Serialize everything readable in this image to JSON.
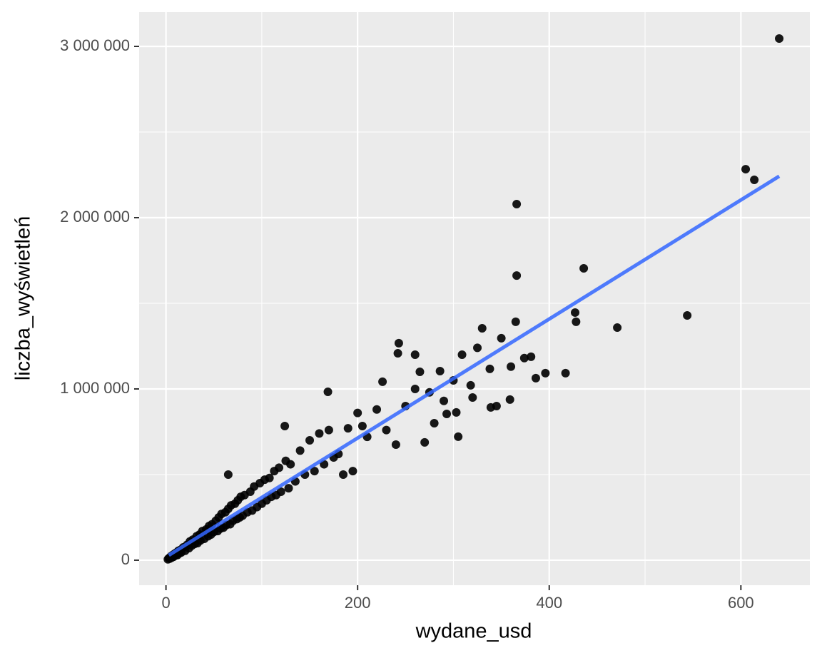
{
  "chart_data": {
    "type": "scatter",
    "x_label": "wydane_usd",
    "y_label": "liczba_wyświetleń",
    "color": "#000000",
    "x": [
      2,
      3,
      4,
      5,
      6,
      7,
      8,
      9,
      10,
      11,
      12,
      13,
      14,
      15,
      16,
      18,
      20,
      22,
      24,
      25,
      27,
      28,
      30,
      32,
      33,
      35,
      36,
      38,
      40,
      42,
      44,
      45,
      47,
      48,
      50,
      52,
      54,
      55,
      57,
      58,
      60,
      62,
      63,
      65,
      67,
      68,
      70,
      72,
      74,
      75,
      77,
      78,
      80,
      82,
      85,
      88,
      90,
      92,
      95,
      98,
      100,
      103,
      105,
      108,
      110,
      113,
      115,
      118,
      120,
      125,
      128,
      130,
      135,
      140,
      145,
      150,
      155,
      160,
      165,
      170,
      175,
      180,
      185,
      190,
      195,
      200,
      640,
      605,
      614,
      366,
      366,
      436,
      544,
      471,
      427,
      428,
      365,
      243,
      242,
      260,
      330,
      350,
      325,
      169,
      124,
      65,
      381,
      417,
      396,
      386,
      374,
      305,
      359,
      339,
      286,
      303,
      293,
      205,
      240,
      270,
      226,
      309,
      318,
      338,
      210,
      220,
      230,
      250,
      260,
      265,
      275,
      280,
      290,
      300,
      320,
      345,
      360
    ],
    "y": [
      5000,
      12000,
      9000,
      22000,
      15000,
      30000,
      20000,
      38000,
      28000,
      45000,
      30000,
      55000,
      40000,
      60000,
      45000,
      75000,
      55000,
      90000,
      70000,
      110000,
      85000,
      120000,
      95000,
      140000,
      100000,
      150000,
      115000,
      170000,
      125000,
      180000,
      140000,
      200000,
      150000,
      210000,
      165000,
      230000,
      170000,
      250000,
      185000,
      270000,
      190000,
      280000,
      205000,
      300000,
      210000,
      320000,
      230000,
      330000,
      240000,
      350000,
      250000,
      370000,
      260000,
      380000,
      280000,
      400000,
      290000,
      430000,
      310000,
      450000,
      330000,
      470000,
      350000,
      480000,
      370000,
      520000,
      380000,
      540000,
      400000,
      580000,
      420000,
      560000,
      460000,
      640000,
      500000,
      700000,
      520000,
      740000,
      560000,
      760000,
      600000,
      620000,
      500000,
      770000,
      520000,
      860000,
      3046000,
      2283000,
      2221000,
      2079000,
      1662000,
      1704000,
      1429000,
      1358000,
      1446000,
      1392000,
      1392000,
      1267000,
      1208000,
      1200000,
      1354000,
      1296000,
      1240000,
      983000,
      783000,
      500000,
      1188000,
      1092000,
      1092000,
      1063000,
      1180000,
      721000,
      938000,
      892000,
      1104000,
      863000,
      854000,
      783000,
      675000,
      688000,
      1042000,
      1200000,
      1021000,
      1117000,
      720000,
      880000,
      760000,
      900000,
      1000000,
      1100000,
      980000,
      800000,
      930000,
      1050000,
      950000,
      900000,
      1130000
    ],
    "trend": {
      "x": [
        3,
        640
      ],
      "y": [
        29000,
        2242000
      ],
      "color": "#3366ff"
    },
    "xlim": [
      -28,
      672
    ],
    "ylim": [
      -146000,
      3200000
    ],
    "xticks": [
      0,
      200,
      400,
      600
    ],
    "yticks": [
      0,
      {
        "value": 1000000,
        "label": "1 000 000"
      },
      {
        "value": 2000000,
        "label": "2 000 000"
      },
      {
        "value": 3000000,
        "label": "3 000 000"
      }
    ],
    "x_minor_grid": [
      100,
      300,
      500
    ],
    "y_minor_grid": [
      500000,
      1500000,
      2500000
    ],
    "grid": true
  }
}
